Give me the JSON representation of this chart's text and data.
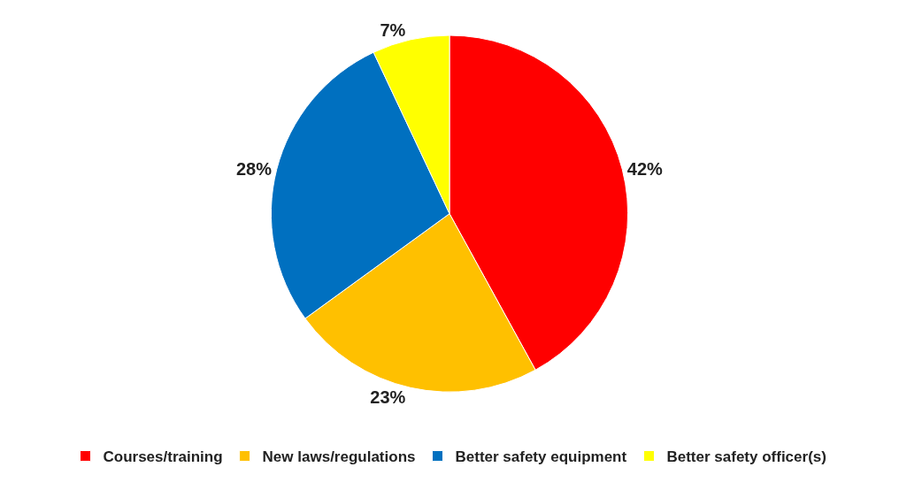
{
  "chart_data": {
    "type": "pie",
    "categories": [
      "Courses/training",
      "New laws/regulations",
      "Better safety equipment",
      "Better safety officer(s)"
    ],
    "values": [
      42,
      23,
      28,
      7
    ],
    "colors": [
      "#ff0000",
      "#ffc000",
      "#0070c0",
      "#ffff00"
    ],
    "value_labels": [
      "42%",
      "23%",
      "28%",
      "7%"
    ],
    "legend": "bottom"
  }
}
